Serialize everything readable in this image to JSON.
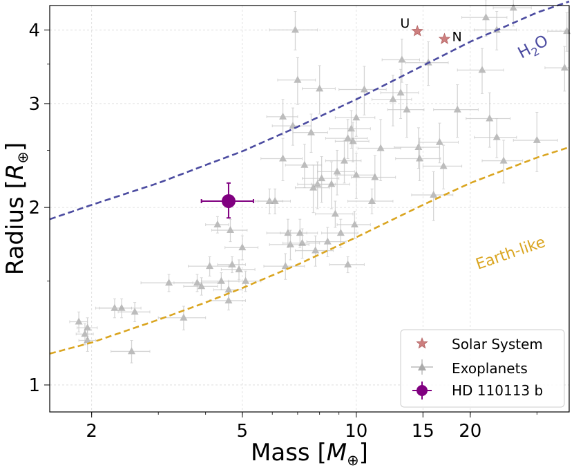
{
  "chart_data": {
    "type": "scatter",
    "xscale": "log",
    "yscale": "log",
    "xlabel_prefix": "Mass [",
    "xlabel_symbol": "M",
    "xlabel_sub": "⊕",
    "xlabel_suffix": "]",
    "ylabel_prefix": "Radius [",
    "ylabel_symbol": "R",
    "ylabel_sub": "⊕",
    "ylabel_suffix": "]",
    "xlim": [
      1.55,
      36.5
    ],
    "ylim": [
      0.9,
      4.4
    ],
    "xticks": [
      2,
      5,
      10,
      15,
      20
    ],
    "xtick_labels": [
      "2",
      "5",
      "10",
      "15",
      "20"
    ],
    "yticks": [
      1,
      2,
      3,
      4
    ],
    "ytick_labels": [
      "1",
      "2",
      "3",
      "4"
    ],
    "grid": true,
    "legend_position": "bottom-right",
    "legend": [
      {
        "label": "Solar System",
        "marker": "star",
        "color": "#cd7f7f"
      },
      {
        "label": "Exoplanets",
        "marker": "triangle",
        "color": "#aaaaaa"
      },
      {
        "label": "HD 110113 b",
        "marker": "circle",
        "color": "#800080"
      }
    ],
    "curves": [
      {
        "name": "H2O",
        "label": "H",
        "label_sub": "2",
        "label_tail": "O",
        "color": "#4b4ba0",
        "x": [
          1.55,
          2,
          3,
          4,
          5,
          7,
          10,
          15,
          20,
          30,
          36.5
        ],
        "y": [
          1.91,
          2.02,
          2.2,
          2.36,
          2.49,
          2.74,
          3.05,
          3.48,
          3.82,
          4.28,
          4.47
        ]
      },
      {
        "name": "Earth-like",
        "label": "Earth-like",
        "color": "#daa520",
        "x": [
          1.55,
          2,
          3,
          4,
          5,
          7,
          10,
          15,
          20,
          30,
          36.5
        ],
        "y": [
          1.13,
          1.18,
          1.29,
          1.38,
          1.46,
          1.6,
          1.78,
          2.02,
          2.2,
          2.43,
          2.53
        ]
      }
    ],
    "solar_system": [
      {
        "name": "U",
        "mass": 14.5,
        "radius": 3.98
      },
      {
        "name": "N",
        "mass": 17.1,
        "radius": 3.86
      }
    ],
    "target": {
      "name": "HD 110113 b",
      "mass": 4.6,
      "radius": 2.05,
      "mass_err": [
        0.7,
        0.75
      ],
      "radius_err": [
        0.13,
        0.15
      ],
      "color": "#800080"
    },
    "exoplanets": [
      [
        1.85,
        1.28,
        0.1,
        0.05
      ],
      [
        1.92,
        1.22,
        0.1,
        0.05
      ],
      [
        1.95,
        1.25,
        0.12,
        0.05
      ],
      [
        1.95,
        1.19,
        0.1,
        0.05
      ],
      [
        2.3,
        1.35,
        0.25,
        0.05
      ],
      [
        2.4,
        1.35,
        0.3,
        0.05
      ],
      [
        2.55,
        1.14,
        0.3,
        0.05
      ],
      [
        2.6,
        1.33,
        0.25,
        0.05
      ],
      [
        3.2,
        1.49,
        0.5,
        0.05
      ],
      [
        3.5,
        1.3,
        0.5,
        0.06
      ],
      [
        3.8,
        1.49,
        0.5,
        0.05
      ],
      [
        3.9,
        1.47,
        0.4,
        0.05
      ],
      [
        4.1,
        1.59,
        0.5,
        0.06
      ],
      [
        4.3,
        1.87,
        0.3,
        0.06
      ],
      [
        4.4,
        1.5,
        0.5,
        0.05
      ],
      [
        4.6,
        1.39,
        0.5,
        0.05
      ],
      [
        4.6,
        1.45,
        0.4,
        0.05
      ],
      [
        4.65,
        1.83,
        0.5,
        0.08
      ],
      [
        4.7,
        1.6,
        0.4,
        0.05
      ],
      [
        4.9,
        1.57,
        0.5,
        0.06
      ],
      [
        5.0,
        1.71,
        0.5,
        0.08
      ],
      [
        5.1,
        1.5,
        0.5,
        0.06
      ],
      [
        5.9,
        2.05,
        0.5,
        0.1
      ],
      [
        6.1,
        2.05,
        0.6,
        0.1
      ],
      [
        6.4,
        2.85,
        0.6,
        0.2
      ],
      [
        6.4,
        2.42,
        0.8,
        0.2
      ],
      [
        6.5,
        1.59,
        0.8,
        0.08
      ],
      [
        6.6,
        1.81,
        0.8,
        0.1
      ],
      [
        6.7,
        1.73,
        0.8,
        0.1
      ],
      [
        6.8,
        2.75,
        0.8,
        0.2
      ],
      [
        6.9,
        4.0,
        1.0,
        0.3
      ],
      [
        7.0,
        3.29,
        0.8,
        0.3
      ],
      [
        7.1,
        1.81,
        0.8,
        0.1
      ],
      [
        7.2,
        1.74,
        0.8,
        0.1
      ],
      [
        7.3,
        2.36,
        0.8,
        0.2
      ],
      [
        7.6,
        2.68,
        0.8,
        0.2
      ],
      [
        7.7,
        2.16,
        0.8,
        0.2
      ],
      [
        7.8,
        1.69,
        0.9,
        0.1
      ],
      [
        7.9,
        2.19,
        0.9,
        0.2
      ],
      [
        8.0,
        3.18,
        0.8,
        0.3
      ],
      [
        8.1,
        2.24,
        0.9,
        0.2
      ],
      [
        8.4,
        1.75,
        1.0,
        0.1
      ],
      [
        8.6,
        2.19,
        1.0,
        0.2
      ],
      [
        8.8,
        1.95,
        1.0,
        0.1
      ],
      [
        8.9,
        2.3,
        1.0,
        0.2
      ],
      [
        9.1,
        1.81,
        1.0,
        0.1
      ],
      [
        9.3,
        2.4,
        1.0,
        0.2
      ],
      [
        9.5,
        1.6,
        1.0,
        0.05
      ],
      [
        9.5,
        2.62,
        1.2,
        0.2
      ],
      [
        9.7,
        2.72,
        1.2,
        0.2
      ],
      [
        9.8,
        2.59,
        1.0,
        0.2
      ],
      [
        9.9,
        1.87,
        1.0,
        0.1
      ],
      [
        10.0,
        2.84,
        1.2,
        0.2
      ],
      [
        10.0,
        2.27,
        1.2,
        0.2
      ],
      [
        10.5,
        3.17,
        1.5,
        0.3
      ],
      [
        11.0,
        2.05,
        1.5,
        0.1
      ],
      [
        11.2,
        2.25,
        1.5,
        0.2
      ],
      [
        11.6,
        2.52,
        1.5,
        0.3
      ],
      [
        12.5,
        3.05,
        1.5,
        0.3
      ],
      [
        13.1,
        3.13,
        1.5,
        0.3
      ],
      [
        13.2,
        3.56,
        1.5,
        0.3
      ],
      [
        13.6,
        2.93,
        1.5,
        0.3
      ],
      [
        14.6,
        2.53,
        2.0,
        0.2
      ],
      [
        14.7,
        2.42,
        2.0,
        0.2
      ],
      [
        15.5,
        3.52,
        2.0,
        0.3
      ],
      [
        16.0,
        2.1,
        2.0,
        0.2
      ],
      [
        16.6,
        2.58,
        2.0,
        0.2
      ],
      [
        17.0,
        2.35,
        2.0,
        0.2
      ],
      [
        18.5,
        2.93,
        2.5,
        0.3
      ],
      [
        21.5,
        3.42,
        3.0,
        0.3
      ],
      [
        22.0,
        4.2,
        3.0,
        0.3
      ],
      [
        22.5,
        2.83,
        3.0,
        0.3
      ],
      [
        23.5,
        4.0,
        3.0,
        0.3
      ],
      [
        23.5,
        2.63,
        3.0,
        0.2
      ],
      [
        24.5,
        2.4,
        3.0,
        0.2
      ],
      [
        26.0,
        4.36,
        3.0,
        0.3
      ],
      [
        30.0,
        2.6,
        4.0,
        0.3
      ],
      [
        36.0,
        3.98,
        4.0,
        0.3
      ],
      [
        35.5,
        3.45,
        4.0,
        0.3
      ]
    ]
  }
}
